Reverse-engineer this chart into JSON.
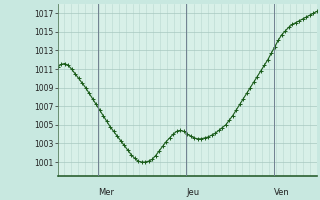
{
  "background_color": "#c8e8e0",
  "plot_bg_color": "#d8f0e8",
  "line_color": "#1a5c1a",
  "marker_color": "#1a5c1a",
  "grid_color_major": "#a8c8c0",
  "grid_color_minor": "#b8d8d0",
  "day_line_color": "#708090",
  "ylabel_color": "#222222",
  "xlabel_color": "#222222",
  "ylim": [
    999.5,
    1018.0
  ],
  "yticks": [
    1001,
    1003,
    1005,
    1007,
    1009,
    1011,
    1013,
    1015,
    1017
  ],
  "day_labels": [
    "Mer",
    "Jeu",
    "Ven"
  ],
  "day_positions": [
    0.155,
    0.495,
    0.835
  ],
  "y_values": [
    1011.2,
    1011.5,
    1011.6,
    1011.4,
    1011.0,
    1010.5,
    1010.0,
    1009.5,
    1009.0,
    1008.4,
    1007.8,
    1007.2,
    1006.6,
    1006.0,
    1005.4,
    1004.8,
    1004.3,
    1003.8,
    1003.3,
    1002.8,
    1002.3,
    1001.8,
    1001.4,
    1001.1,
    1001.0,
    1001.0,
    1001.1,
    1001.3,
    1001.7,
    1002.2,
    1002.7,
    1003.2,
    1003.6,
    1004.0,
    1004.3,
    1004.4,
    1004.3,
    1004.0,
    1003.8,
    1003.6,
    1003.5,
    1003.5,
    1003.6,
    1003.7,
    1003.9,
    1004.1,
    1004.4,
    1004.7,
    1005.0,
    1005.5,
    1006.0,
    1006.6,
    1007.2,
    1007.8,
    1008.4,
    1009.0,
    1009.6,
    1010.2,
    1010.8,
    1011.4,
    1012.0,
    1012.7,
    1013.4,
    1014.1,
    1014.7,
    1015.1,
    1015.5,
    1015.8,
    1016.0,
    1016.2,
    1016.4,
    1016.6,
    1016.8,
    1017.0,
    1017.2
  ]
}
